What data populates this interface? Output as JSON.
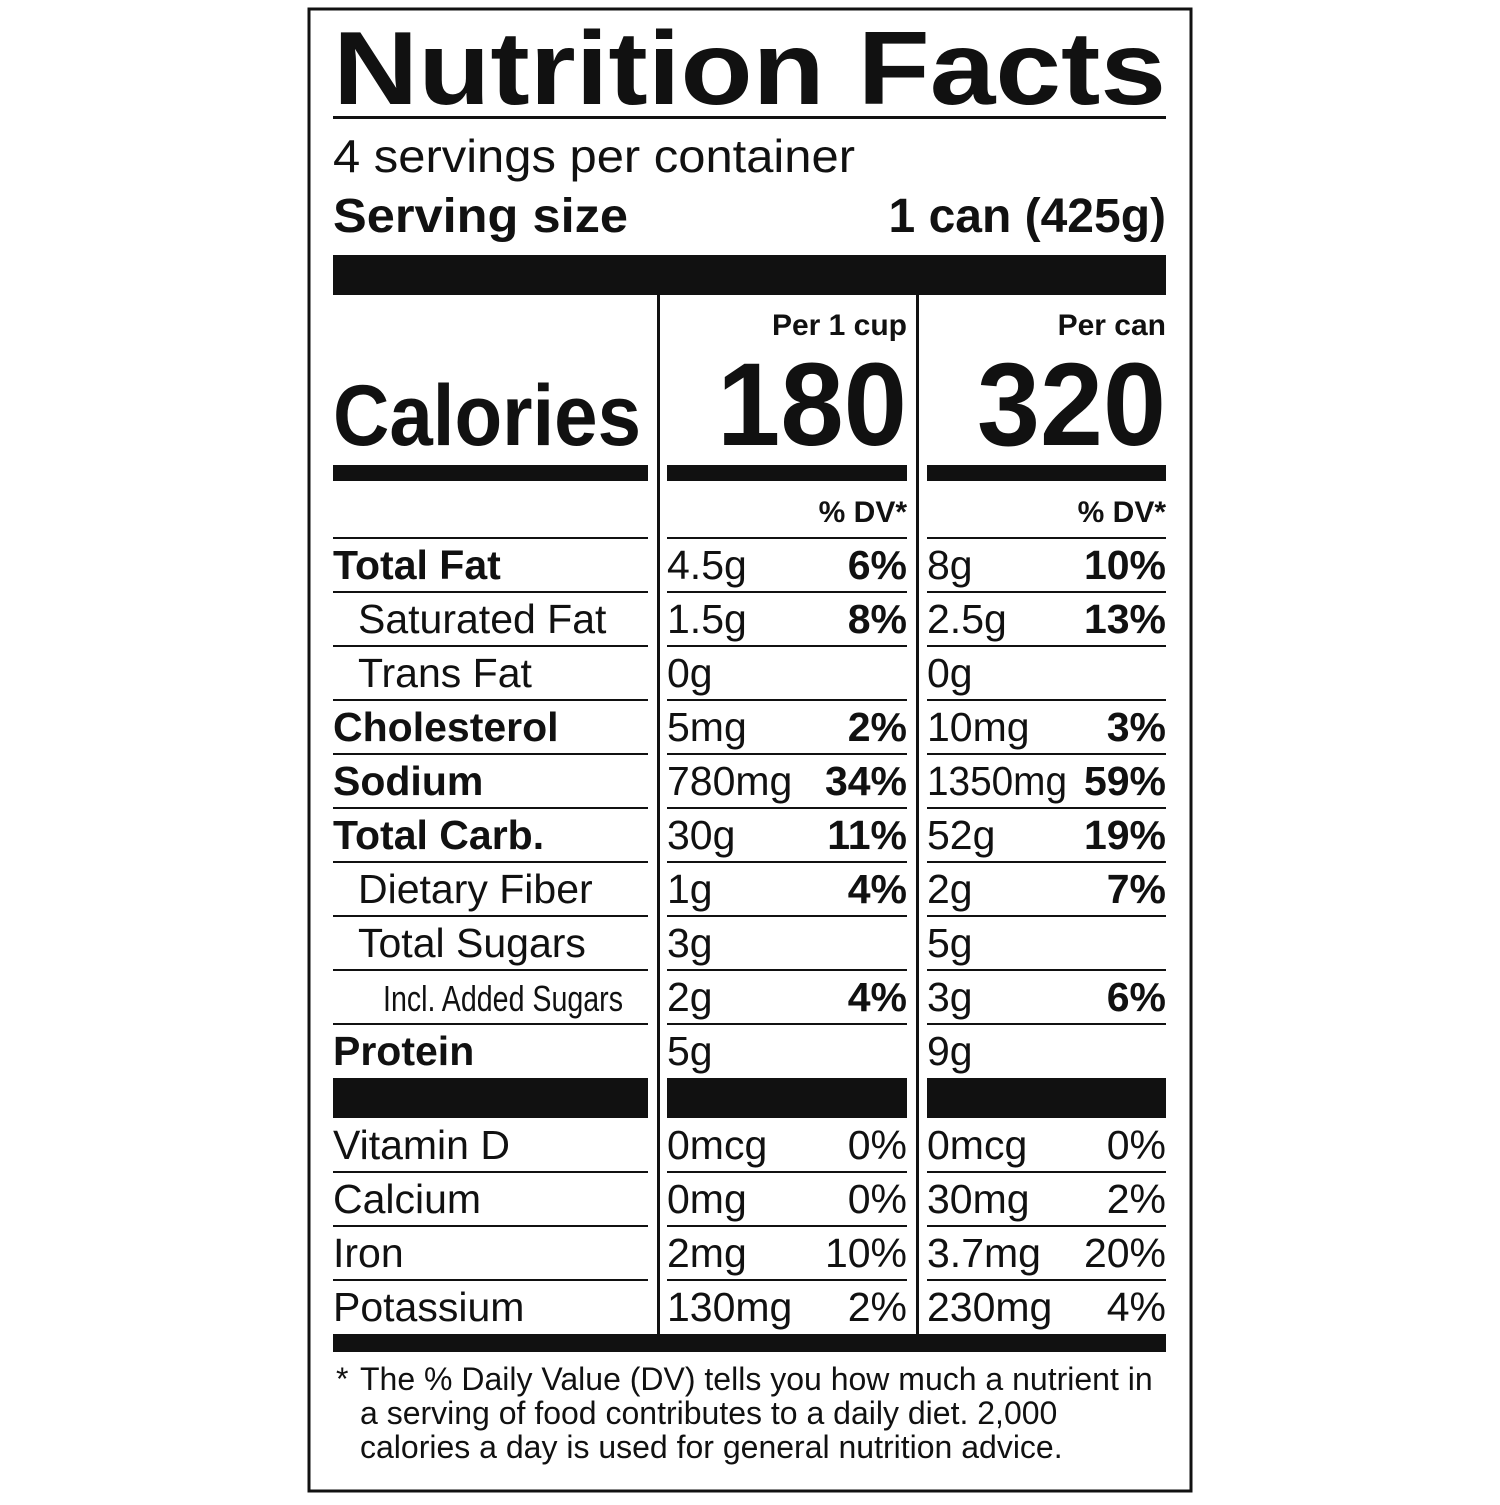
{
  "header": {
    "title": "Nutrition Facts",
    "servings": "4 servings per container",
    "serving_size_label": "Serving size",
    "serving_size": "1 can (425g)"
  },
  "calories_label": "Calories",
  "columns": [
    {
      "heading": "Per 1 cup",
      "calories": "180",
      "dv_heading": "% DV*"
    },
    {
      "heading": "Per can",
      "calories": "320",
      "dv_heading": "% DV*"
    }
  ],
  "nutrients": [
    {
      "name": "Total Fat",
      "values": [
        {
          "amount": "4.5g",
          "dv": "6%"
        },
        {
          "amount": "8g",
          "dv": "10%"
        }
      ]
    },
    {
      "name": "Saturated Fat",
      "values": [
        {
          "amount": "1.5g",
          "dv": "8%"
        },
        {
          "amount": "2.5g",
          "dv": "13%"
        }
      ]
    },
    {
      "name": "Trans Fat",
      "values": [
        {
          "amount": "0g"
        },
        {
          "amount": "0g"
        }
      ]
    },
    {
      "name": "Cholesterol",
      "values": [
        {
          "amount": "5mg",
          "dv": "2%"
        },
        {
          "amount": "10mg",
          "dv": "3%"
        }
      ]
    },
    {
      "name": "Sodium",
      "values": [
        {
          "amount": "780mg",
          "dv": "34%"
        },
        {
          "amount": "1350mg",
          "dv": "59%"
        }
      ]
    },
    {
      "name": "Total Carb.",
      "values": [
        {
          "amount": "30g",
          "dv": "11%"
        },
        {
          "amount": "52g",
          "dv": "19%"
        }
      ]
    },
    {
      "name": "Dietary Fiber",
      "values": [
        {
          "amount": "1g",
          "dv": "4%"
        },
        {
          "amount": "2g",
          "dv": "7%"
        }
      ]
    },
    {
      "name": "Total Sugars",
      "values": [
        {
          "amount": "3g"
        },
        {
          "amount": "5g"
        }
      ]
    },
    {
      "name": "Incl. Added Sugars",
      "values": [
        {
          "amount": "2g",
          "dv": "4%"
        },
        {
          "amount": "3g",
          "dv": "6%"
        }
      ]
    },
    {
      "name": "Protein",
      "values": [
        {
          "amount": "5g"
        },
        {
          "amount": "9g"
        }
      ]
    }
  ],
  "vitamins": [
    {
      "name": "Vitamin D",
      "values": [
        {
          "amount": "0mcg",
          "dv": "0%"
        },
        {
          "amount": "0mcg",
          "dv": "0%"
        }
      ]
    },
    {
      "name": "Calcium",
      "values": [
        {
          "amount": "0mg",
          "dv": "0%"
        },
        {
          "amount": "30mg",
          "dv": "2%"
        }
      ]
    },
    {
      "name": "Iron",
      "values": [
        {
          "amount": "2mg",
          "dv": "10%"
        },
        {
          "amount": "3.7mg",
          "dv": "20%"
        }
      ]
    },
    {
      "name": "Potassium",
      "values": [
        {
          "amount": "130mg",
          "dv": "2%"
        },
        {
          "amount": "230mg",
          "dv": "4%"
        }
      ]
    }
  ],
  "footnote": {
    "mark": "*",
    "lines": [
      "The % Daily Value (DV) tells you how much a nutrient in",
      "a serving of food contributes to a daily diet. 2,000",
      "calories a day is used for general nutrition advice."
    ]
  }
}
